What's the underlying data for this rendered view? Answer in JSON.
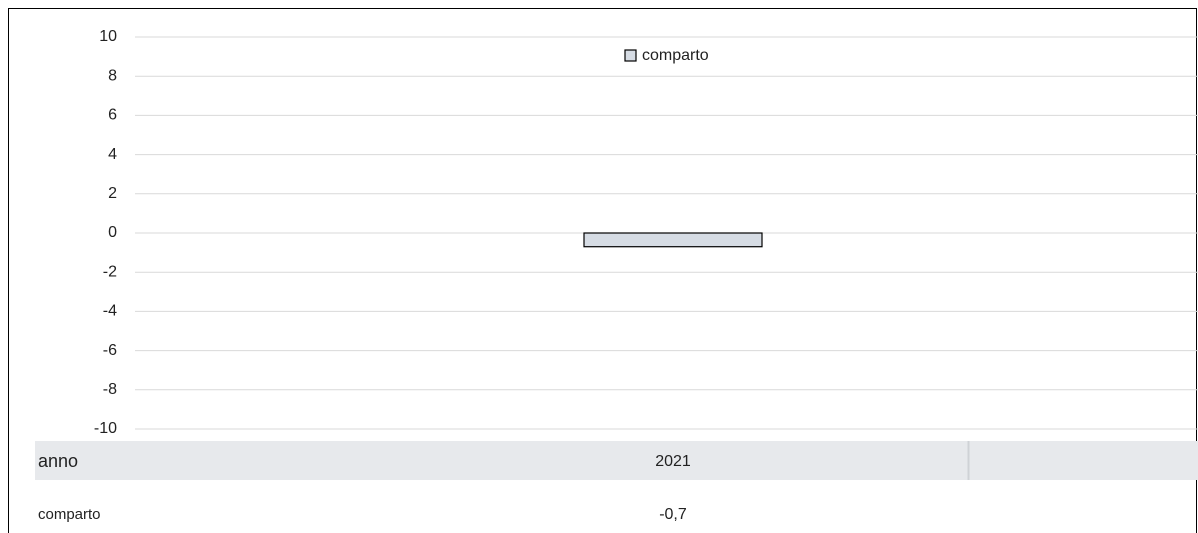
{
  "chart_data": {
    "type": "bar",
    "x_label": "anno",
    "categories": [
      "2021"
    ],
    "series": [
      {
        "name": "comparto",
        "color": "#d6dce4",
        "values": [
          -0.7
        ],
        "value_labels": [
          "-0,7"
        ]
      }
    ],
    "ylim": [
      -10,
      10
    ],
    "yticks": [
      10,
      8,
      6,
      4,
      2,
      0,
      -2,
      -4,
      -6,
      -8,
      -10
    ],
    "grid": true,
    "legend": "top"
  }
}
